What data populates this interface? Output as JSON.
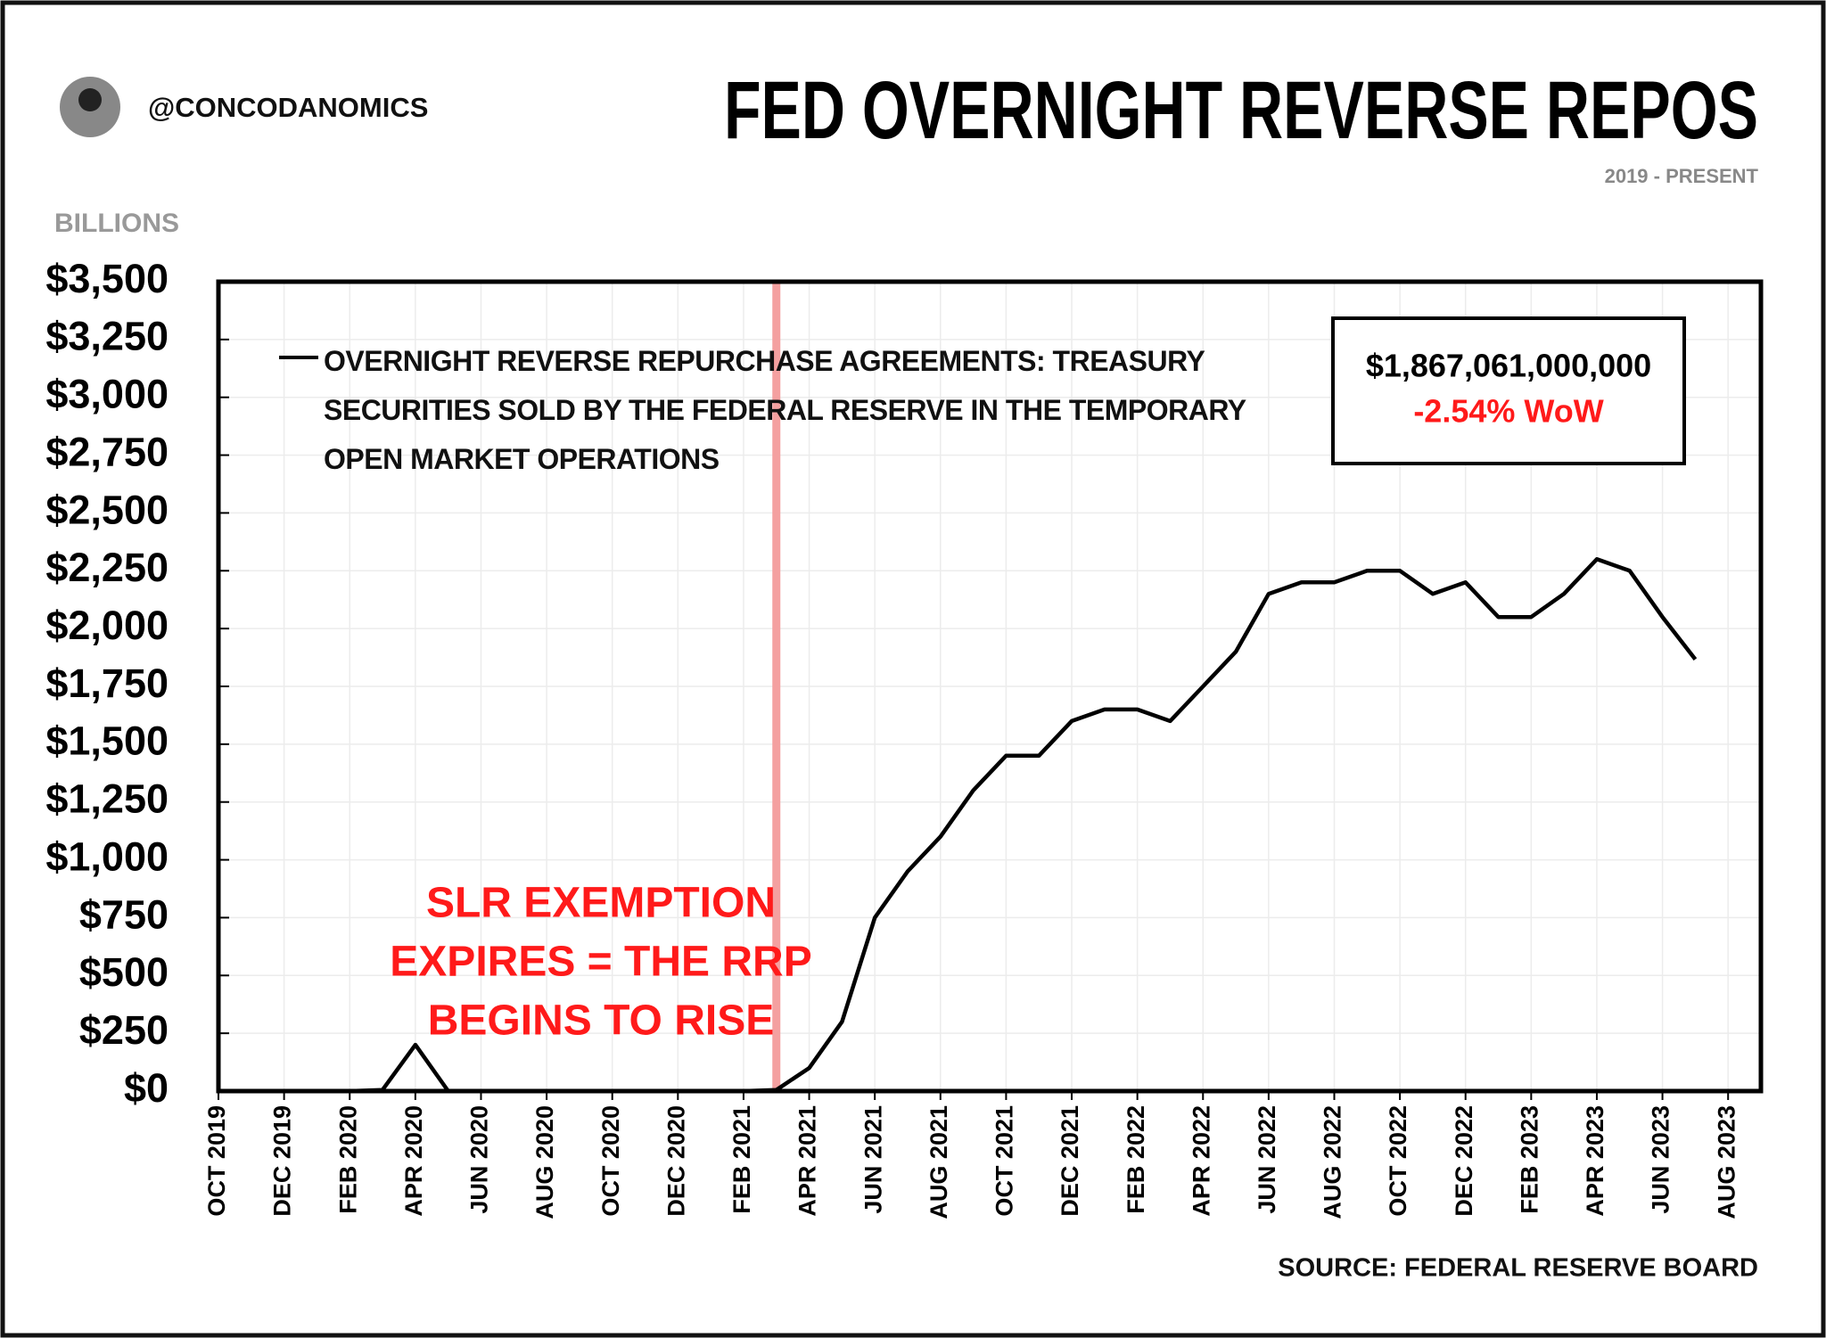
{
  "chart_data": {
    "type": "line",
    "handle": "@CONCODANOMICS",
    "title": "FED OVERNIGHT REVERSE REPOS",
    "subtitle": "2019 - PRESENT",
    "y_label": "BILLIONS",
    "source": "SOURCE: FEDERAL RESERVE BOARD",
    "x": [
      "2019-10",
      "2019-11",
      "2019-12",
      "2020-01",
      "2020-02",
      "2020-03",
      "2020-04",
      "2020-05",
      "2020-06",
      "2020-07",
      "2020-08",
      "2020-09",
      "2020-10",
      "2020-11",
      "2020-12",
      "2021-01",
      "2021-02",
      "2021-03",
      "2021-04",
      "2021-05",
      "2021-06",
      "2021-07",
      "2021-08",
      "2021-09",
      "2021-10",
      "2021-11",
      "2021-12",
      "2022-01",
      "2022-02",
      "2022-03",
      "2022-04",
      "2022-05",
      "2022-06",
      "2022-07",
      "2022-08",
      "2022-09",
      "2022-10",
      "2022-11",
      "2022-12",
      "2023-01",
      "2023-02",
      "2023-03",
      "2023-04",
      "2023-05",
      "2023-06",
      "2023-07"
    ],
    "series": [
      {
        "name": "OVERNIGHT REVERSE REPURCHASE AGREEMENTS: TREASURY SECURITIES SOLD BY THE FEDERAL RESERVE IN THE TEMPORARY OPEN MARKET OPERATIONS",
        "color": "#000000",
        "values": [
          0,
          0,
          0,
          0,
          0,
          5,
          200,
          0,
          0,
          0,
          0,
          0,
          0,
          0,
          0,
          0,
          0,
          5,
          100,
          300,
          750,
          950,
          1100,
          1300,
          1450,
          1450,
          1600,
          1650,
          1650,
          1600,
          1750,
          1900,
          2150,
          2200,
          2200,
          2250,
          2250,
          2150,
          2200,
          2050,
          2050,
          2150,
          2300,
          2250,
          2050,
          1867
        ]
      }
    ],
    "xlim": [
      "2019-10",
      "2023-09"
    ],
    "xticks": [
      {
        "value": "2019-10",
        "label": "OCT 2019"
      },
      {
        "value": "2019-12",
        "label": "DEC 2019"
      },
      {
        "value": "2020-02",
        "label": "FEB 2020"
      },
      {
        "value": "2020-04",
        "label": "APR 2020"
      },
      {
        "value": "2020-06",
        "label": "JUN 2020"
      },
      {
        "value": "2020-08",
        "label": "AUG 2020"
      },
      {
        "value": "2020-10",
        "label": "OCT 2020"
      },
      {
        "value": "2020-12",
        "label": "DEC 2020"
      },
      {
        "value": "2021-02",
        "label": "FEB 2021"
      },
      {
        "value": "2021-04",
        "label": "APR 2021"
      },
      {
        "value": "2021-06",
        "label": "JUN 2021"
      },
      {
        "value": "2021-08",
        "label": "AUG 2021"
      },
      {
        "value": "2021-10",
        "label": "OCT 2021"
      },
      {
        "value": "2021-12",
        "label": "DEC 2021"
      },
      {
        "value": "2022-02",
        "label": "FEB 2022"
      },
      {
        "value": "2022-04",
        "label": "APR 2022"
      },
      {
        "value": "2022-06",
        "label": "JUN 2022"
      },
      {
        "value": "2022-08",
        "label": "AUG 2022"
      },
      {
        "value": "2022-10",
        "label": "OCT 2022"
      },
      {
        "value": "2022-12",
        "label": "DEC 2022"
      },
      {
        "value": "2023-02",
        "label": "FEB 2023"
      },
      {
        "value": "2023-04",
        "label": "APR 2023"
      },
      {
        "value": "2023-06",
        "label": "JUN 2023"
      },
      {
        "value": "2023-08",
        "label": "AUG 2023"
      }
    ],
    "ylim": [
      0,
      3500
    ],
    "yticks": [
      {
        "value": 0,
        "label": "$0"
      },
      {
        "value": 250,
        "label": "$250"
      },
      {
        "value": 500,
        "label": "$500"
      },
      {
        "value": 750,
        "label": "$750"
      },
      {
        "value": 1000,
        "label": "$1,000"
      },
      {
        "value": 1250,
        "label": "$1,250"
      },
      {
        "value": 1500,
        "label": "$1,500"
      },
      {
        "value": 1750,
        "label": "$1,750"
      },
      {
        "value": 2000,
        "label": "$2,000"
      },
      {
        "value": 2250,
        "label": "$2,250"
      },
      {
        "value": 2500,
        "label": "$2,500"
      },
      {
        "value": 2750,
        "label": "$2,750"
      },
      {
        "value": 3000,
        "label": "$3,000"
      },
      {
        "value": 3250,
        "label": "$3,250"
      },
      {
        "value": 3500,
        "label": "$3,500"
      }
    ],
    "grid": true,
    "event": {
      "x": "2021-03",
      "color": "#f4a0a0",
      "lines": [
        "SLR EXEMPTION",
        "EXPIRES = THE RRP",
        "BEGINS TO RISE"
      ],
      "text_color": "#ff1a1a"
    },
    "callout": {
      "value_text": "$1,867,061,000,000",
      "change_text": "-2.54% WoW",
      "change_color": "#ff1a1a"
    }
  }
}
